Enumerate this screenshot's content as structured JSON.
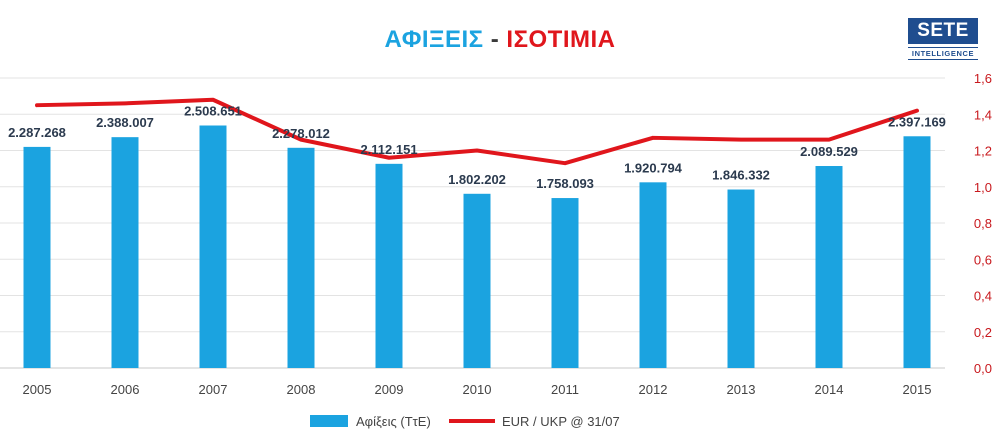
{
  "title": {
    "part1": "ΑΦΙΞΕΙΣ",
    "separator": "-",
    "part2": "ΙΣΟΤΙΜΙΑ"
  },
  "logo": {
    "main": "SETE",
    "sub": "INTELLIGENCE"
  },
  "colors": {
    "bar": "#1ba3e0",
    "line": "#e0161c",
    "label": "#2b3a4e",
    "axis_right": "#c8191e"
  },
  "chart_data": {
    "type": "bar",
    "categories": [
      "2005",
      "2006",
      "2007",
      "2008",
      "2009",
      "2010",
      "2011",
      "2012",
      "2013",
      "2014",
      "2015"
    ],
    "series": [
      {
        "name": "Αφίξεις  (ΤτΕ)",
        "type": "bar",
        "axis": "left",
        "values": [
          2287268,
          2388007,
          2508651,
          2278012,
          2112151,
          1802202,
          1758093,
          1920794,
          1846332,
          2089529,
          2397169
        ],
        "labels": [
          "2.287.268",
          "2.388.007",
          "2.508.651",
          "2.278.012",
          "2.112.151",
          "1.802.202",
          "1.758.093",
          "1.920.794",
          "1.846.332",
          "2.089.529",
          "2.397.169"
        ]
      },
      {
        "name": "EUR / UKP @ 31/07",
        "type": "line",
        "axis": "right",
        "values": [
          1.45,
          1.46,
          1.48,
          1.26,
          1.16,
          1.2,
          1.13,
          1.27,
          1.26,
          1.26,
          1.42
        ]
      }
    ],
    "y_left_range": [
      0,
      3000000
    ],
    "y_right_range": [
      0,
      1.6
    ],
    "y_right_ticks": [
      "0,0",
      "0,2",
      "0,4",
      "0,6",
      "0,8",
      "1,0",
      "1,2",
      "1,4",
      "1,6"
    ],
    "grid": true,
    "legend": "bottom"
  }
}
